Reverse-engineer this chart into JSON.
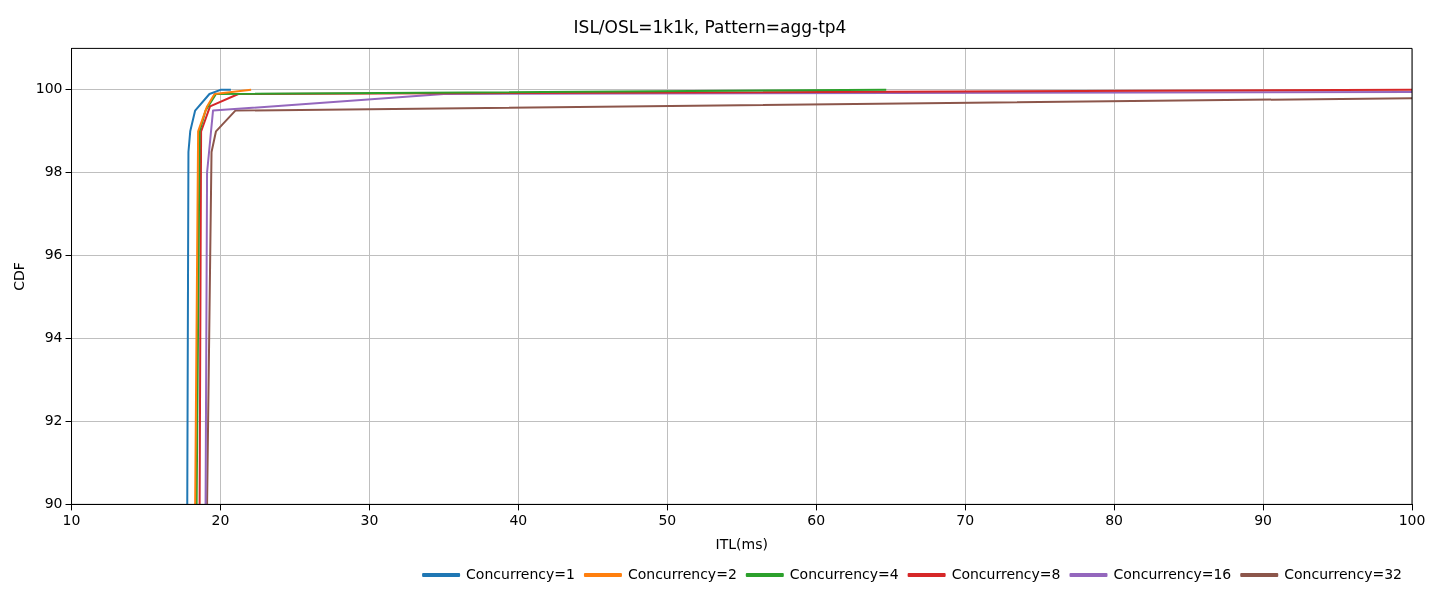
{
  "chart_data": {
    "type": "line",
    "title": "ISL/OSL=1k1k, Pattern=agg-tp4",
    "xlabel": "ITL(ms)",
    "ylabel": "CDF",
    "xlim": [
      10,
      100
    ],
    "ylim": [
      90,
      101
    ],
    "xticks": [
      10,
      20,
      30,
      40,
      50,
      60,
      70,
      80,
      90,
      100
    ],
    "yticks": [
      90,
      92,
      94,
      96,
      98,
      100
    ],
    "grid": true,
    "legend": "bottom right",
    "marker": "none",
    "line_style": "solid",
    "series": [
      {
        "name": "Concurrency=1",
        "color": "#1f77b4",
        "x": [
          17.77,
          17.85,
          17.97,
          18.3,
          19.26,
          20.0,
          20.7
        ],
        "values": [
          90,
          98.5,
          99,
          99.5,
          99.9,
          100,
          100
        ]
      },
      {
        "name": "Concurrency=2",
        "color": "#ff7f0e",
        "x": [
          18.3,
          18.5,
          19.1,
          19.6,
          22.06
        ],
        "values": [
          90,
          99,
          99.6,
          99.9,
          100
        ]
      },
      {
        "name": "Concurrency=4",
        "color": "#2ca02c",
        "x": [
          18.4,
          18.6,
          19.0,
          19.7,
          64.7
        ],
        "values": [
          90,
          99,
          99.5,
          99.9,
          100
        ]
      },
      {
        "name": "Concurrency=8",
        "color": "#d62728",
        "x": [
          18.6,
          18.7,
          19.3,
          21.2,
          100
        ],
        "values": [
          90,
          99,
          99.6,
          99.9,
          100
        ]
      },
      {
        "name": "Concurrency=16",
        "color": "#9467bd",
        "x": [
          19.0,
          19.1,
          19.5,
          35,
          100
        ],
        "values": [
          90,
          98,
          99.5,
          99.9,
          99.95
        ]
      },
      {
        "name": "Concurrency=32",
        "color": "#8c564b",
        "x": [
          19.1,
          19.4,
          19.7,
          21.0,
          100
        ],
        "values": [
          90,
          98.5,
          99,
          99.5,
          99.8
        ]
      }
    ]
  }
}
